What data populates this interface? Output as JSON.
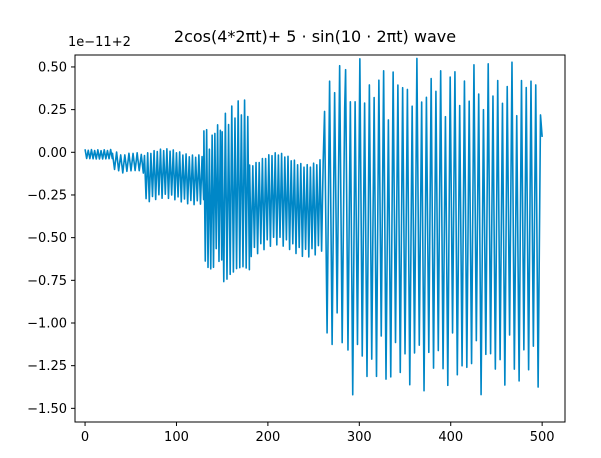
{
  "chart_data": {
    "type": "line",
    "title": "2cos(4*2πt)+ 5 · sin(10 · 2πt) wave",
    "xlabel": "",
    "ylabel": "",
    "y_offset_label": "1e−11+2",
    "xlim": [
      -11,
      525
    ],
    "ylim": [
      -1.58,
      0.57
    ],
    "x_ticks": [
      0,
      100,
      200,
      300,
      400,
      500
    ],
    "x_tick_labels": [
      "0",
      "100",
      "200",
      "300",
      "400",
      "500"
    ],
    "y_ticks": [
      0.5,
      0.25,
      0.0,
      -0.25,
      -0.5,
      -0.75,
      -1.0,
      -1.25,
      -1.5
    ],
    "y_tick_labels": [
      "0.50",
      "0.25",
      "0.00",
      "−0.25",
      "−0.50",
      "−0.75",
      "−1.00",
      "−1.25",
      "−1.50"
    ],
    "grid": false,
    "line_color": "#0087c7",
    "segments": [
      {
        "x_start": 0,
        "x_end": 30,
        "center": -0.01,
        "amp": 0.03,
        "period": 3.5
      },
      {
        "x_start": 30,
        "x_end": 65,
        "center": -0.06,
        "amp": 0.06,
        "period": 4.5
      },
      {
        "x_start": 65,
        "x_end": 130,
        "center": -0.14,
        "amp": 0.16,
        "period": 3.5
      },
      {
        "x_start": 130,
        "x_end": 150,
        "center": -0.27,
        "amp": 0.44,
        "period": 3.0
      },
      {
        "x_start": 150,
        "x_end": 180,
        "center": -0.27,
        "amp": 0.55,
        "period": 3.5
      },
      {
        "x_start": 180,
        "x_end": 262,
        "center": -0.3,
        "amp": 0.3,
        "period": 3.5
      },
      {
        "x_start": 262,
        "x_end": 285,
        "center": -0.35,
        "amp": 0.85,
        "period": 5.5
      },
      {
        "x_start": 285,
        "x_end": 500,
        "center": -0.43,
        "amp": 0.95,
        "period": 5.2
      }
    ]
  }
}
